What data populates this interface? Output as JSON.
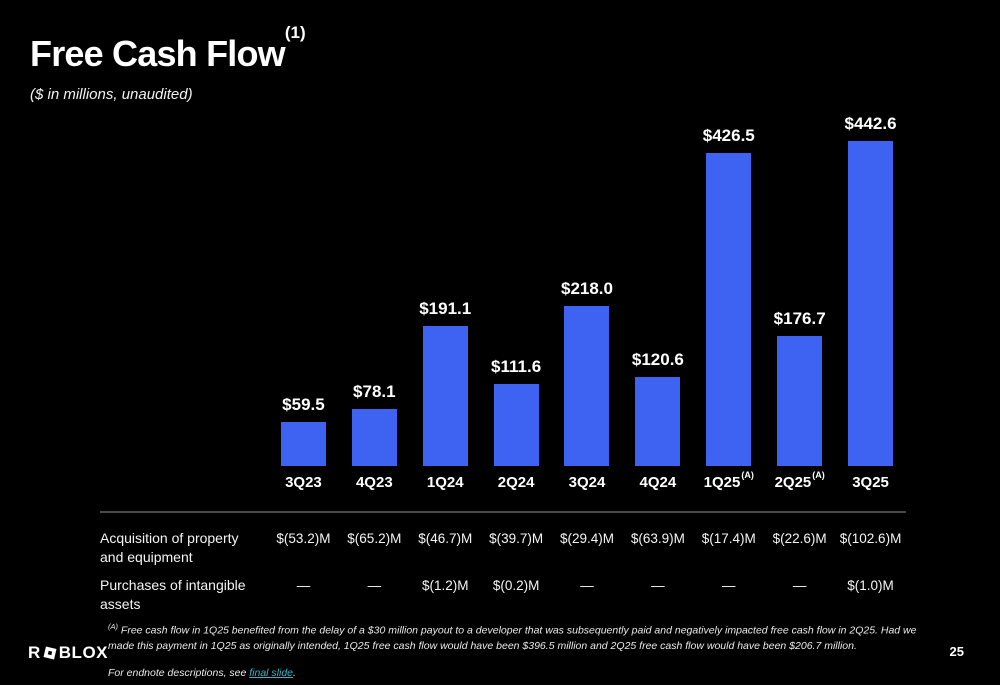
{
  "header": {
    "title": "Free Cash Flow",
    "title_superscript": "(1)",
    "subtitle": "($ in millions, unaudited)"
  },
  "chart_data": {
    "type": "bar",
    "title": "Free Cash Flow",
    "units": "$ in millions",
    "categories": [
      "3Q23",
      "4Q23",
      "1Q24",
      "2Q24",
      "3Q24",
      "4Q24",
      "1Q25",
      "2Q25",
      "3Q25"
    ],
    "category_superscripts": [
      "",
      "",
      "",
      "",
      "",
      "",
      "(A)",
      "(A)",
      ""
    ],
    "values": [
      59.5,
      78.1,
      191.1,
      111.6,
      218.0,
      120.6,
      426.5,
      176.7,
      442.6
    ],
    "value_labels": [
      "$59.5",
      "$78.1",
      "$191.1",
      "$111.6",
      "$218.0",
      "$120.6",
      "$426.5",
      "$176.7",
      "$442.6"
    ],
    "bar_color": "#3E63F2",
    "ylim": [
      0,
      450
    ],
    "grid": false,
    "legend": false,
    "background": "#000000"
  },
  "table": {
    "rows": [
      {
        "label": "Acquisition of property and equipment",
        "values": [
          "$(53.2)M",
          "$(65.2)M",
          "$(46.7)M",
          "$(39.7)M",
          "$(29.4)M",
          "$(63.9)M",
          "$(17.4)M",
          "$(22.6)M",
          "$(102.6)M"
        ]
      },
      {
        "label": "Purchases of intangible assets",
        "values": [
          "—",
          "—",
          "$(1.2)M",
          "$(0.2)M",
          "—",
          "—",
          "—",
          "—",
          "$(1.0)M"
        ]
      }
    ]
  },
  "footnotes": {
    "a_superscript": "(A)",
    "a_text": "Free cash flow in 1Q25 benefited from the delay of a $30 million payout to a developer that was subsequently paid and negatively impacted free cash flow in 2Q25. Had we made this payment in 1Q25 as originally intended, 1Q25 free cash flow would have been $396.5 million and 2Q25 free cash flow would have been $206.7 million.",
    "endnote_prefix": "For endnote descriptions, see ",
    "endnote_link_text": "final slide",
    "endnote_suffix": ".",
    "link_color": "#35B5C8"
  },
  "footer": {
    "logo_text_left": "R",
    "logo_text_right": "BLOX",
    "logo_icon": "roblox-tilted-square-icon",
    "page_number": "25"
  }
}
